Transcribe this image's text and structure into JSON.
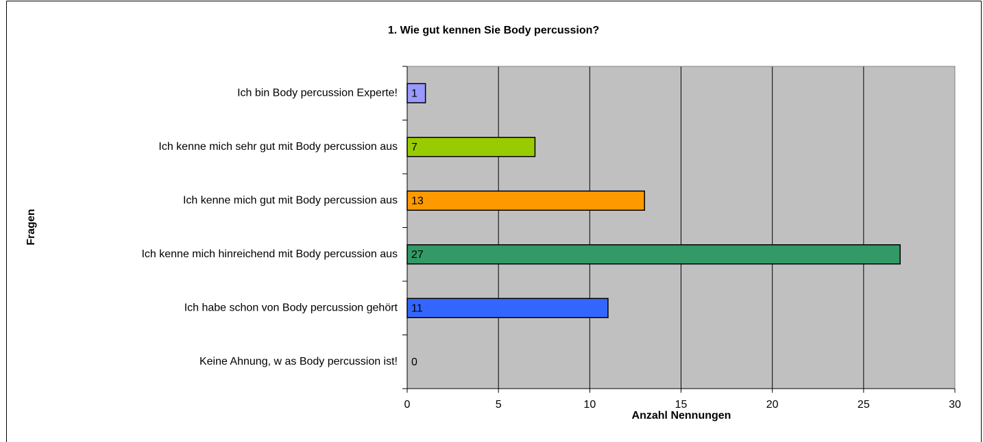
{
  "chart_data": {
    "type": "bar",
    "orientation": "horizontal",
    "title": "1. Wie gut kennen Sie Body percussion?",
    "xlabel": "Anzahl Nennungen",
    "ylabel": "Fragen",
    "categories": [
      "Ich bin Body percussion Experte!",
      "Ich kenne mich sehr gut mit Body percussion aus",
      "Ich kenne mich gut mit Body percussion aus",
      "Ich kenne mich hinreichend mit Body percussion aus",
      "Ich habe schon von Body percussion gehört",
      "Keine Ahnung, w as Body percussion ist!"
    ],
    "values": [
      1,
      7,
      13,
      27,
      11,
      0
    ],
    "colors": [
      "#9999ff",
      "#99cc00",
      "#ff9900",
      "#339966",
      "#3366ff",
      null
    ],
    "xlim": [
      0,
      30
    ],
    "xticks": [
      0,
      5,
      10,
      15,
      20,
      25,
      30
    ],
    "grid": true
  }
}
